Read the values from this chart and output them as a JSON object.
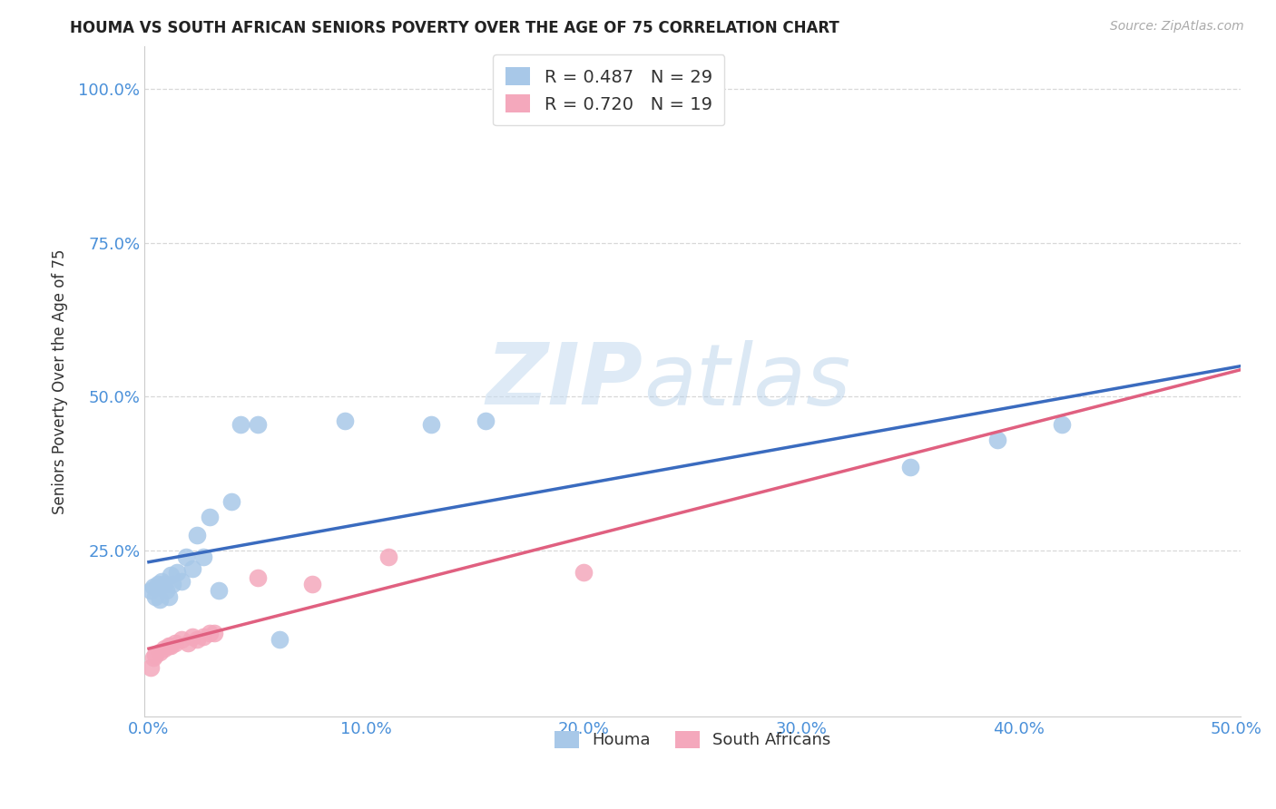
{
  "title": "HOUMA VS SOUTH AFRICAN SENIORS POVERTY OVER THE AGE OF 75 CORRELATION CHART",
  "source": "Source: ZipAtlas.com",
  "ylabel": "Seniors Poverty Over the Age of 75",
  "xlim": [
    -0.002,
    0.502
  ],
  "ylim": [
    -0.02,
    1.07
  ],
  "xticks": [
    0.0,
    0.1,
    0.2,
    0.3,
    0.4,
    0.5
  ],
  "yticks": [
    0.25,
    0.5,
    0.75,
    1.0
  ],
  "xtick_labels": [
    "0.0%",
    "10.0%",
    "20.0%",
    "30.0%",
    "40.0%",
    "50.0%"
  ],
  "ytick_labels": [
    "25.0%",
    "50.0%",
    "75.0%",
    "100.0%"
  ],
  "houma_color": "#a8c8e8",
  "sa_color": "#f4a8bc",
  "houma_line_color": "#3a6bbf",
  "sa_line_color": "#e06080",
  "houma_R": 0.487,
  "houma_N": 29,
  "sa_R": 0.72,
  "sa_N": 19,
  "watermark_zip": "ZIP",
  "watermark_atlas": "atlas",
  "houma_x": [
    0.001,
    0.002,
    0.003,
    0.004,
    0.005,
    0.006,
    0.007,
    0.008,
    0.009,
    0.01,
    0.011,
    0.013,
    0.015,
    0.017,
    0.02,
    0.022,
    0.025,
    0.028,
    0.032,
    0.038,
    0.042,
    0.05,
    0.06,
    0.09,
    0.13,
    0.155,
    0.35,
    0.39,
    0.42
  ],
  "houma_y": [
    0.185,
    0.19,
    0.175,
    0.195,
    0.17,
    0.2,
    0.195,
    0.185,
    0.175,
    0.21,
    0.195,
    0.215,
    0.2,
    0.24,
    0.22,
    0.275,
    0.24,
    0.305,
    0.185,
    0.33,
    0.455,
    0.455,
    0.105,
    0.46,
    0.455,
    0.46,
    0.385,
    0.43,
    0.455
  ],
  "sa_x": [
    0.001,
    0.002,
    0.003,
    0.005,
    0.007,
    0.009,
    0.01,
    0.012,
    0.015,
    0.018,
    0.02,
    0.022,
    0.025,
    0.028,
    0.03,
    0.05,
    0.075,
    0.11,
    0.2
  ],
  "sa_y": [
    0.06,
    0.075,
    0.08,
    0.085,
    0.09,
    0.095,
    0.095,
    0.1,
    0.105,
    0.1,
    0.11,
    0.105,
    0.11,
    0.115,
    0.115,
    0.205,
    0.195,
    0.24,
    0.215
  ],
  "background_color": "#ffffff",
  "grid_color": "#d8d8d8"
}
